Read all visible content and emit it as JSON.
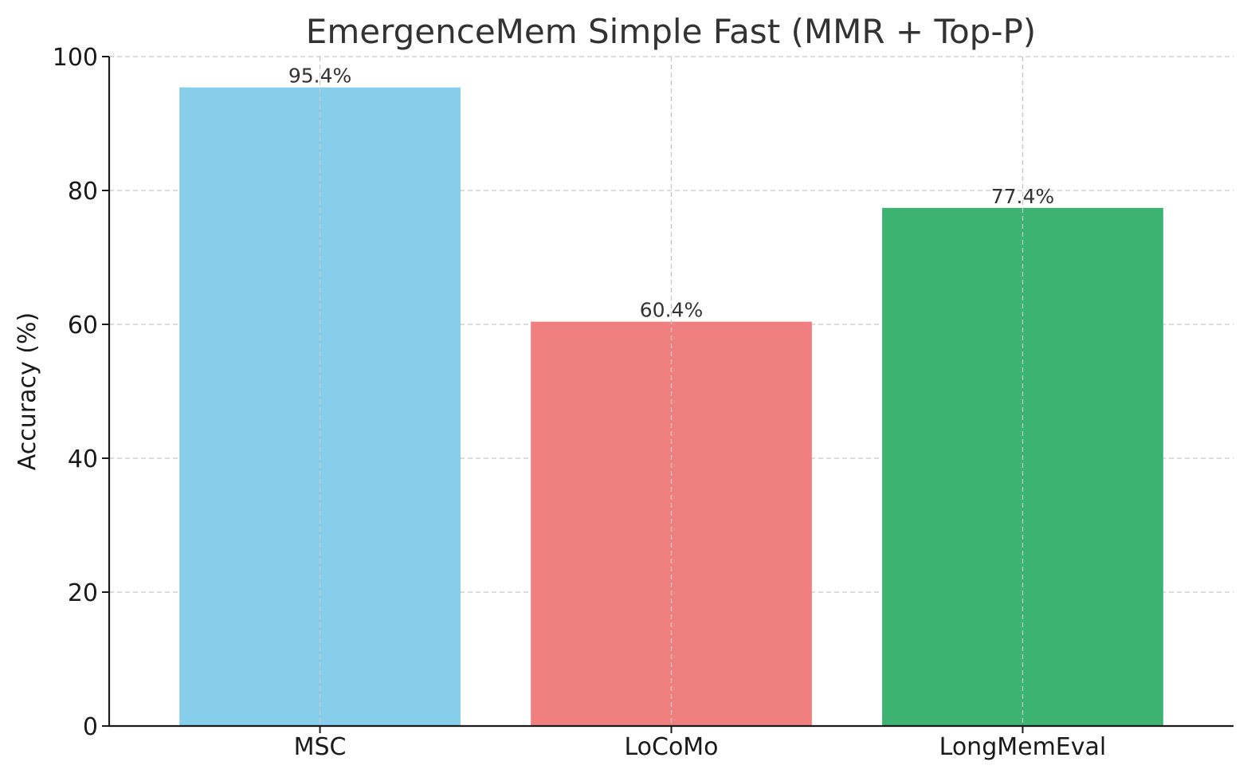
{
  "chart_data": {
    "type": "bar",
    "title": "EmergenceMem Simple Fast (MMR + Top-P)",
    "xlabel": "",
    "ylabel": "Accuracy (%)",
    "categories": [
      "MSC",
      "LoCoMo",
      "LongMemEval"
    ],
    "values": [
      95.4,
      60.4,
      77.4
    ],
    "value_labels": [
      "95.4%",
      "60.4%",
      "77.4%"
    ],
    "colors": [
      "#87CEEB",
      "#F08080",
      "#3CB371"
    ],
    "ylim": [
      0,
      100
    ],
    "yticks": [
      0,
      20,
      40,
      60,
      80,
      100
    ],
    "ytick_labels": [
      "0",
      "20",
      "40",
      "60",
      "80",
      "100"
    ],
    "grid": true,
    "legend": "none"
  }
}
